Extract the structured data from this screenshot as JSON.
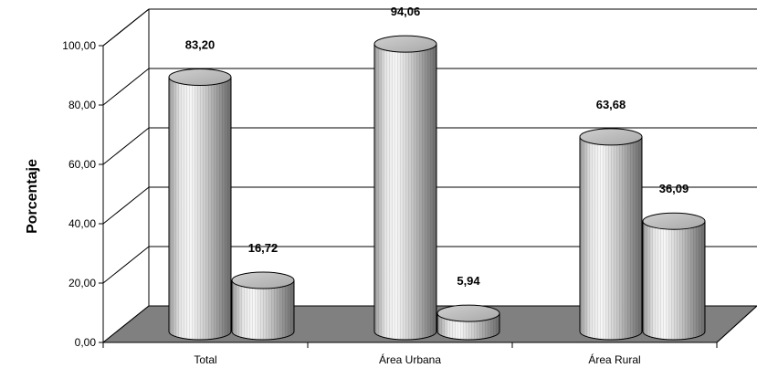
{
  "chart_data": {
    "type": "bar",
    "style": "3d-cylinder",
    "categories": [
      "Total",
      "Área Urbana",
      "Área Rural"
    ],
    "series": [
      {
        "values": [
          83.2,
          94.06,
          63.68
        ]
      },
      {
        "values": [
          16.72,
          5.94,
          36.09
        ]
      }
    ],
    "data_labels": [
      [
        "83,20",
        "94,06",
        "63,68"
      ],
      [
        "16,72",
        "5,94",
        "36,09"
      ]
    ],
    "ylabel": "Porcentaje",
    "xlabel": "",
    "ylim": [
      0,
      100
    ],
    "yticks": [
      "0,00",
      "20,00",
      "40,00",
      "60,00",
      "80,00",
      "100,00"
    ],
    "grid": true,
    "legend": "none",
    "colors": {
      "floor": "#808080",
      "cylinder_light": "#f2f2f2",
      "cylinder_dark": "#6e6e6e",
      "gridline": "#000000"
    }
  }
}
